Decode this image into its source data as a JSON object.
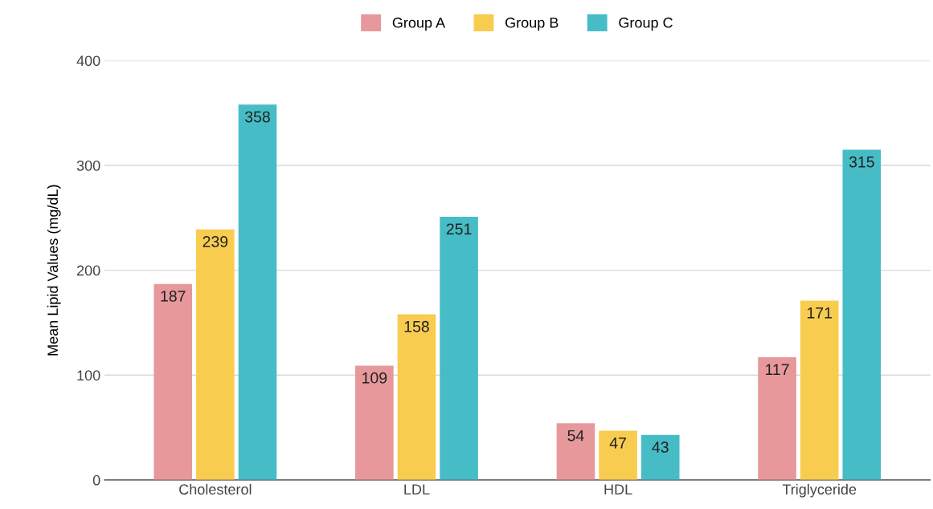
{
  "chart_data": {
    "type": "bar",
    "ylabel": "Mean Lipid Values (mg/dL)",
    "categories": [
      "Cholesterol",
      "LDL",
      "HDL",
      "Triglyceride"
    ],
    "series": [
      {
        "name": "Group A",
        "color": "#e6989a",
        "values": [
          187,
          109,
          54,
          117
        ]
      },
      {
        "name": "Group B",
        "color": "#f8cc4f",
        "values": [
          239,
          158,
          47,
          171
        ]
      },
      {
        "name": "Group C",
        "color": "#46bdc6",
        "values": [
          358,
          251,
          43,
          315
        ]
      }
    ],
    "ylim": [
      0,
      400
    ],
    "yticks": [
      0,
      100,
      200,
      300,
      400
    ],
    "grid": "y",
    "legend": "top",
    "data_labels": true
  }
}
